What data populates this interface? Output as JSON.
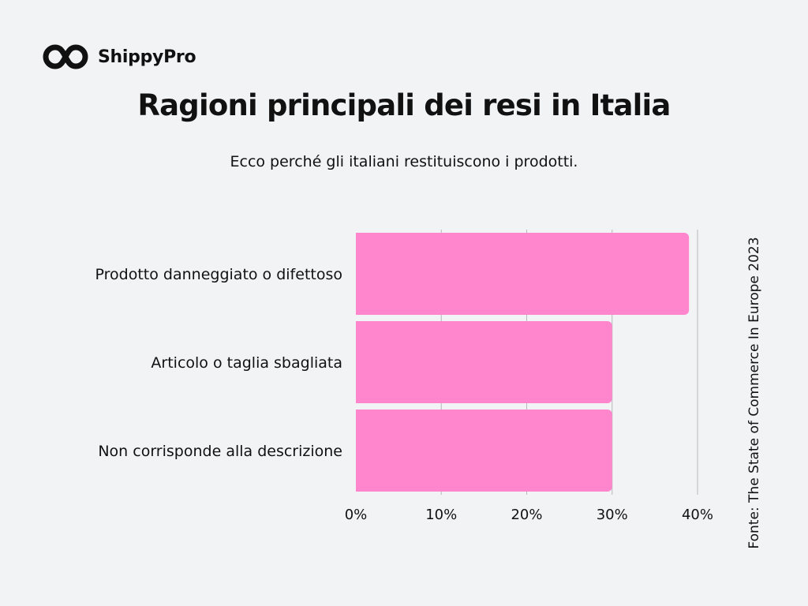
{
  "brand": {
    "name": "ShippyPro",
    "icon": "infinity-link-icon",
    "color": "#111111"
  },
  "title": "Ragioni principali dei resi in Italia",
  "subtitle": "Ecco perché gli italiani restituiscono i prodotti.",
  "source": "Fonte: The State of Commerce In Europe 2023",
  "colors": {
    "bar": "#ff85cc",
    "grid": "#b8b8b8",
    "background": "#f2f3f5",
    "text": "#111111"
  },
  "chart_data": {
    "type": "bar",
    "orientation": "horizontal",
    "categories": [
      "Prodotto danneggiato o difettoso",
      "Articolo o taglia sbagliata",
      "Non corrisponde alla descrizione"
    ],
    "values": [
      39,
      30,
      30
    ],
    "xlim": [
      0,
      40
    ],
    "xticks": [
      0,
      10,
      20,
      30,
      40
    ],
    "tick_labels": [
      "0%",
      "10%",
      "20%",
      "30%",
      "40%"
    ],
    "grid": true,
    "legend": false
  }
}
